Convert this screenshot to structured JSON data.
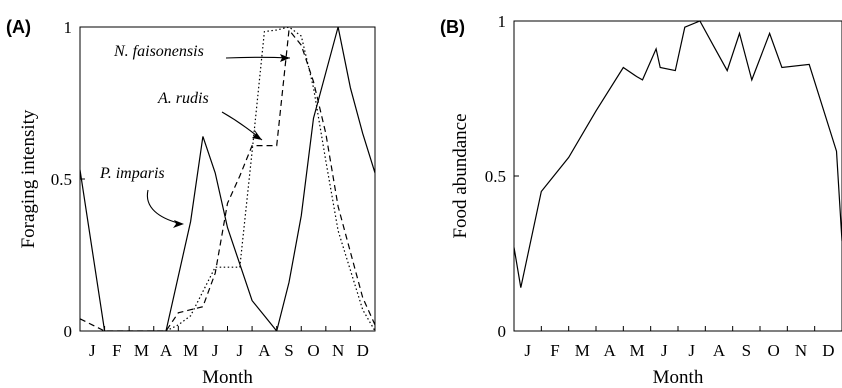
{
  "chart_data": [
    {
      "panel": "(A)",
      "type": "line",
      "xlabel": "Month",
      "ylabel": "Foraging intensity",
      "categories": [
        "J",
        "F",
        "M",
        "A",
        "M",
        "J",
        "J",
        "A",
        "S",
        "O",
        "N",
        "D"
      ],
      "yticks": [
        "0",
        "0.5",
        "1"
      ],
      "ylim": [
        0,
        1
      ],
      "xlim": [
        0.5,
        12.5
      ],
      "series": [
        {
          "name": "N. faisonensis",
          "style": "dotted",
          "x": [
            4,
            4.5,
            5,
            6,
            6.5,
            7,
            7.5,
            8,
            8.5,
            9,
            9.5,
            10,
            10.5,
            11,
            11.5,
            12,
            12.5
          ],
          "y": [
            0,
            0.02,
            0.05,
            0.21,
            0.21,
            0.21,
            0.59,
            0.985,
            0.99,
            1.0,
            0.97,
            0.8,
            0.56,
            0.33,
            0.2,
            0.07,
            0.0
          ]
        },
        {
          "name": "A. rudis",
          "style": "dashed",
          "x": [
            0.5,
            1,
            1.5,
            2,
            3,
            4,
            4.5,
            5,
            5.5,
            6,
            6.5,
            7,
            7.5,
            8,
            8.5,
            9,
            9.5,
            10,
            10.5,
            11,
            12,
            12.5
          ],
          "y": [
            0.04,
            0.02,
            0.0,
            0.0,
            0.0,
            0.0,
            0.06,
            0.07,
            0.08,
            0.19,
            0.42,
            0.51,
            0.61,
            0.61,
            0.61,
            0.99,
            0.94,
            0.82,
            0.65,
            0.41,
            0.11,
            0.02
          ]
        },
        {
          "name": "P. imparis",
          "style": "solid",
          "x": [
            0.5,
            1.5,
            2,
            3,
            4,
            5,
            5.5,
            6,
            6.5,
            7,
            7.5,
            8,
            8.5,
            9,
            9.5,
            10,
            10.5,
            11,
            11.5,
            12,
            12.5
          ],
          "y": [
            0.53,
            0.0,
            0.0,
            0.0,
            0.0,
            0.36,
            0.64,
            0.52,
            0.34,
            0.22,
            0.1,
            0.05,
            0.0,
            0.16,
            0.38,
            0.7,
            0.85,
            1.0,
            0.8,
            0.65,
            0.52
          ]
        }
      ],
      "annotations": [
        "N. faisonensis",
        "A. rudis",
        "P. imparis"
      ]
    },
    {
      "panel": "(B)",
      "type": "line",
      "xlabel": "Month",
      "ylabel": "Food abundance",
      "categories": [
        "J",
        "F",
        "M",
        "A",
        "M",
        "J",
        "J",
        "A",
        "S",
        "O",
        "N",
        "D"
      ],
      "yticks": [
        "0",
        "0.5",
        "1"
      ],
      "ylim": [
        0,
        1
      ],
      "xlim": [
        0.5,
        12.5
      ],
      "series": [
        {
          "name": "",
          "style": "solid",
          "x": [
            0.5,
            0.75,
            1.5,
            2.5,
            3.5,
            4.5,
            5.0,
            5.2,
            5.7,
            5.85,
            6.4,
            6.75,
            7.3,
            7.8,
            8.3,
            8.75,
            9.2,
            9.85,
            10.3,
            11.3,
            12.3,
            12.5
          ],
          "y": [
            0.27,
            0.14,
            0.45,
            0.56,
            0.71,
            0.85,
            0.82,
            0.81,
            0.91,
            0.85,
            0.84,
            0.98,
            1.0,
            0.92,
            0.84,
            0.96,
            0.81,
            0.96,
            0.85,
            0.86,
            0.58,
            0.29
          ]
        }
      ]
    }
  ]
}
